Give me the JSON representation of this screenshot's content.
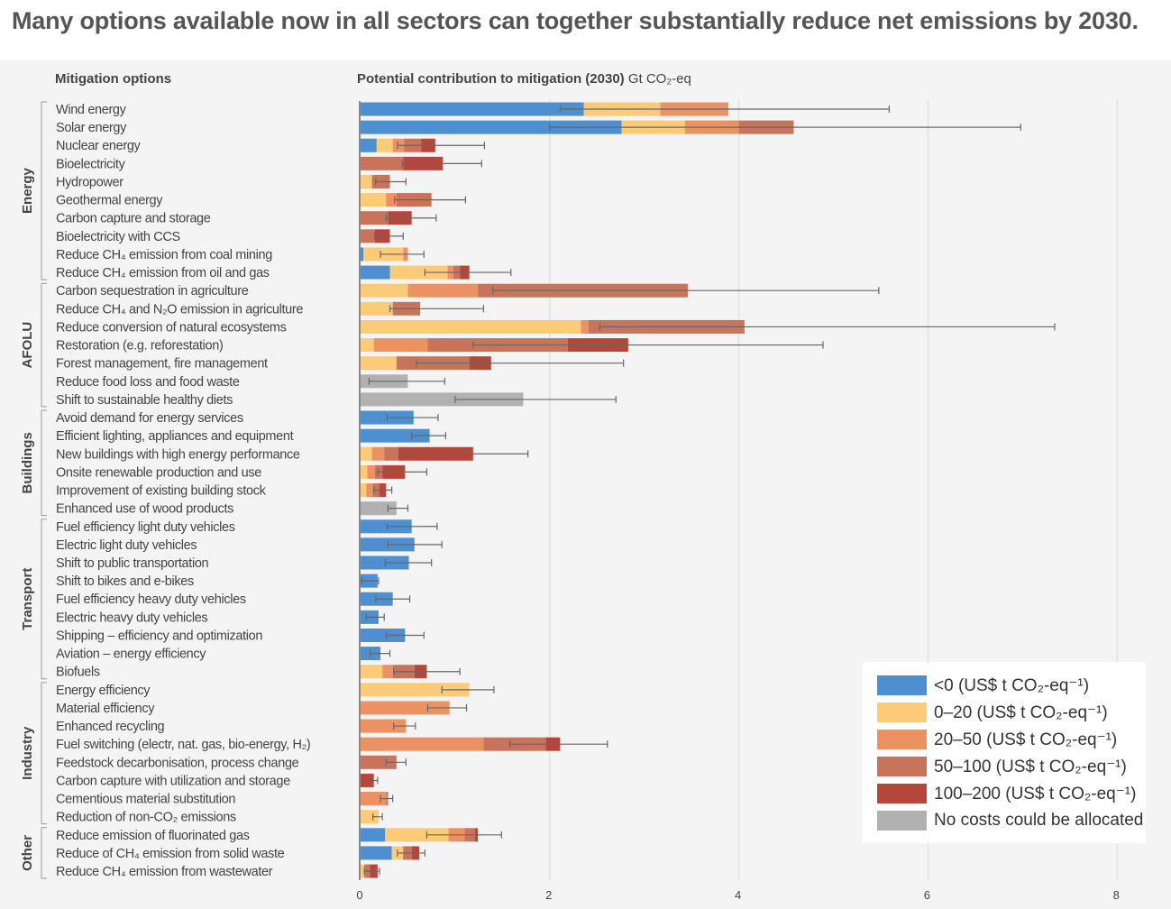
{
  "title": "Many options available now in all sectors can together substantially reduce net emissions by 2030.",
  "chart_data": {
    "type": "bar",
    "orientation": "horizontal-stacked",
    "left_header": "Mitigation options",
    "xlabel": "Potential contribution to mitigation (2030)",
    "xunit": "Gt CO₂-eq",
    "xlim": [
      0,
      8.6
    ],
    "xticks": [
      "0",
      "2",
      "4",
      "6",
      "8"
    ],
    "xtick_values": [
      0,
      2,
      4,
      6,
      8
    ],
    "grid": true,
    "legend_position": "bottom-right",
    "cost_categories": [
      {
        "name": "<0 (US$ t CO₂-eq⁻¹)",
        "color": "#4d8fd0"
      },
      {
        "name": "0–20 (US$ t CO₂-eq⁻¹)",
        "color": "#fdca77"
      },
      {
        "name": "20–50 (US$ t CO₂-eq⁻¹)",
        "color": "#ec9262"
      },
      {
        "name": "50–100 (US$ t CO₂-eq⁻¹)",
        "color": "#c8745b"
      },
      {
        "name": "100–200 (US$ t CO₂-eq⁻¹)",
        "color": "#b5463a"
      },
      {
        "name": "No costs could be allocated",
        "color": "#b1b1b1"
      }
    ],
    "groups": [
      {
        "name": "Energy",
        "start": 0,
        "end": 9
      },
      {
        "name": "AFOLU",
        "start": 10,
        "end": 16
      },
      {
        "name": "Buildings",
        "start": 17,
        "end": 22
      },
      {
        "name": "Transport",
        "start": 23,
        "end": 31
      },
      {
        "name": "Industry",
        "start": 32,
        "end": 39
      },
      {
        "name": "Other",
        "start": 40,
        "end": 42
      }
    ],
    "options": [
      {
        "label": "Wind energy",
        "values": [
          2.36,
          0.81,
          0.72,
          0,
          0,
          0
        ],
        "range": [
          2.11,
          5.59
        ]
      },
      {
        "label": "Solar energy",
        "values": [
          2.76,
          0.67,
          0.57,
          0.58,
          0,
          0
        ],
        "range": [
          2.0,
          6.98
        ]
      },
      {
        "label": "Nuclear energy",
        "values": [
          0.17,
          0.17,
          0.12,
          0.18,
          0.15,
          0
        ],
        "range": [
          0.39,
          1.31
        ]
      },
      {
        "label": "Bioelectricity",
        "values": [
          0,
          0,
          0,
          0.45,
          0.42,
          0
        ],
        "range": [
          0.44,
          1.28
        ]
      },
      {
        "label": "Hydropower",
        "values": [
          0,
          0.12,
          0,
          0.19,
          0,
          0
        ],
        "range": [
          0.16,
          0.48
        ]
      },
      {
        "label": "Geothermal energy",
        "values": [
          0,
          0.27,
          0.11,
          0.37,
          0,
          0
        ],
        "range": [
          0.36,
          1.11
        ]
      },
      {
        "label": "Carbon capture and storage",
        "values": [
          0,
          0,
          0,
          0.29,
          0.25,
          0
        ],
        "range": [
          0.27,
          0.8
        ]
      },
      {
        "label": "Bioelectricity with CCS",
        "values": [
          0,
          0,
          0,
          0.15,
          0.16,
          0
        ],
        "range": [
          0.15,
          0.45
        ]
      },
      {
        "label": "Reduce CH₄ emission from coal mining",
        "values": [
          0.03,
          0.42,
          0.05,
          0,
          0,
          0
        ],
        "range": [
          0.21,
          0.67
        ]
      },
      {
        "label": "Reduce CH₄ emission from oil and gas",
        "values": [
          0.31,
          0.61,
          0.06,
          0.07,
          0.1,
          0
        ],
        "range": [
          0.68,
          1.59
        ]
      },
      {
        "label": "Carbon sequestration in agriculture",
        "values": [
          0,
          0.5,
          0.74,
          2.22,
          0,
          0
        ],
        "range": [
          1.4,
          5.48
        ]
      },
      {
        "label": "Reduce CH₄ and N₂O emission in agriculture",
        "values": [
          0,
          0.34,
          0,
          0.29,
          0,
          0
        ],
        "range": [
          0.31,
          1.3
        ]
      },
      {
        "label": "Reduce conversion of natural ecosystems",
        "values": [
          0,
          2.33,
          0.08,
          1.65,
          0,
          0
        ],
        "range": [
          2.53,
          7.34
        ]
      },
      {
        "label": "Restoration (e.g. reforestation)",
        "values": [
          0,
          0.14,
          0.57,
          1.48,
          0.64,
          0
        ],
        "range": [
          1.19,
          4.89
        ]
      },
      {
        "label": "Forest management, fire management",
        "values": [
          0,
          0.38,
          0,
          0.77,
          0.23,
          0
        ],
        "range": [
          0.59,
          2.78
        ]
      },
      {
        "label": "Reduce food loss and food waste",
        "values": [
          0,
          0,
          0,
          0,
          0,
          0.5
        ],
        "range": [
          0.09,
          0.89
        ]
      },
      {
        "label": "Shift to sustainable healthy diets",
        "values": [
          0,
          0,
          0,
          0,
          0,
          1.72
        ],
        "range": [
          1.0,
          2.7
        ]
      },
      {
        "label": "Avoid demand for energy services",
        "values": [
          0.56,
          0,
          0,
          0,
          0,
          0
        ],
        "range": [
          0.28,
          0.82
        ]
      },
      {
        "label": "Efficient lighting, appliances and equipment",
        "values": [
          0.73,
          0,
          0,
          0,
          0,
          0
        ],
        "range": [
          0.54,
          0.9
        ]
      },
      {
        "label": "New buildings with high energy performance",
        "values": [
          0,
          0.12,
          0.13,
          0.15,
          0.79,
          0
        ],
        "range": [
          0.43,
          1.77
        ]
      },
      {
        "label": "Onsite renewable production and use",
        "values": [
          0,
          0.07,
          0.08,
          0.08,
          0.24,
          0
        ],
        "range": [
          0.18,
          0.7
        ]
      },
      {
        "label": "Improvement of existing building stock",
        "values": [
          0,
          0.06,
          0.07,
          0.07,
          0.07,
          0
        ],
        "range": [
          0.14,
          0.33
        ]
      },
      {
        "label": "Enhanced use of wood products",
        "values": [
          0,
          0,
          0,
          0,
          0,
          0.38
        ],
        "range": [
          0.29,
          0.5
        ]
      },
      {
        "label": "Fuel efficiency light duty vehicles",
        "values": [
          0.54,
          0,
          0,
          0,
          0,
          0
        ],
        "range": [
          0.28,
          0.81
        ]
      },
      {
        "label": "Electric light duty vehicles",
        "values": [
          0.57,
          0,
          0,
          0,
          0,
          0
        ],
        "range": [
          0.29,
          0.86
        ]
      },
      {
        "label": "Shift to public transportation",
        "values": [
          0.51,
          0,
          0,
          0,
          0,
          0
        ],
        "range": [
          0.26,
          0.75
        ]
      },
      {
        "label": "Shift to bikes and e-bikes",
        "values": [
          0.18,
          0,
          0,
          0,
          0,
          0
        ],
        "range": [
          0.01,
          0.19
        ]
      },
      {
        "label": "Fuel efficiency heavy duty vehicles",
        "values": [
          0.34,
          0,
          0,
          0,
          0,
          0
        ],
        "range": [
          0.16,
          0.52
        ]
      },
      {
        "label": "Electric heavy duty vehicles",
        "values": [
          0.19,
          0,
          0,
          0,
          0,
          0
        ],
        "range": [
          0.06,
          0.25
        ]
      },
      {
        "label": "Shipping – efficiency and optimization",
        "values": [
          0.47,
          0,
          0,
          0,
          0,
          0
        ],
        "range": [
          0.27,
          0.67
        ]
      },
      {
        "label": "Aviation – energy efficiency",
        "values": [
          0.21,
          0,
          0,
          0,
          0,
          0
        ],
        "range": [
          0.1,
          0.31
        ]
      },
      {
        "label": "Biofuels",
        "values": [
          0,
          0.23,
          0.11,
          0.23,
          0.13,
          0
        ],
        "range": [
          0.35,
          1.05
        ]
      },
      {
        "label": "Energy efficiency",
        "values": [
          0,
          1.15,
          0,
          0,
          0,
          0
        ],
        "range": [
          0.86,
          1.41
        ]
      },
      {
        "label": "Material efficiency",
        "values": [
          0,
          0,
          0.94,
          0,
          0,
          0
        ],
        "range": [
          0.71,
          1.12
        ]
      },
      {
        "label": "Enhanced recycling",
        "values": [
          0,
          0,
          0.48,
          0,
          0,
          0
        ],
        "range": [
          0.35,
          0.58
        ]
      },
      {
        "label": "Fuel switching (electr, nat. gas, bio-energy, H₂)",
        "values": [
          0,
          0,
          1.3,
          0.66,
          0.15,
          0
        ],
        "range": [
          1.58,
          2.61
        ]
      },
      {
        "label": "Feedstock decarbonisation, process change",
        "values": [
          0,
          0,
          0,
          0.38,
          0,
          0
        ],
        "range": [
          0.27,
          0.48
        ]
      },
      {
        "label": "Carbon capture with utilization and storage",
        "values": [
          0,
          0,
          0,
          0,
          0.14,
          0
        ],
        "range": [
          0.11,
          0.18
        ]
      },
      {
        "label": "Cementious material substitution",
        "values": [
          0,
          0,
          0.27,
          0.02,
          0,
          0
        ],
        "range": [
          0.21,
          0.34
        ]
      },
      {
        "label": "Reduction of non-CO₂ emissions",
        "values": [
          0,
          0.19,
          0,
          0,
          0,
          0
        ],
        "range": [
          0.13,
          0.23
        ]
      },
      {
        "label": "Reduce emission of fluorinated gas",
        "values": [
          0.26,
          0.67,
          0.17,
          0.11,
          0.03,
          0
        ],
        "range": [
          0.7,
          1.49
        ]
      },
      {
        "label": "Reduce of CH₄ emission from solid waste",
        "values": [
          0.33,
          0.12,
          0,
          0.09,
          0.08,
          0
        ],
        "range": [
          0.39,
          0.68
        ]
      },
      {
        "label": "Reduce CH₄ emission from wastewater",
        "values": [
          0,
          0.04,
          0,
          0.06,
          0.08,
          0
        ],
        "range": [
          0.04,
          0.2
        ]
      }
    ]
  }
}
